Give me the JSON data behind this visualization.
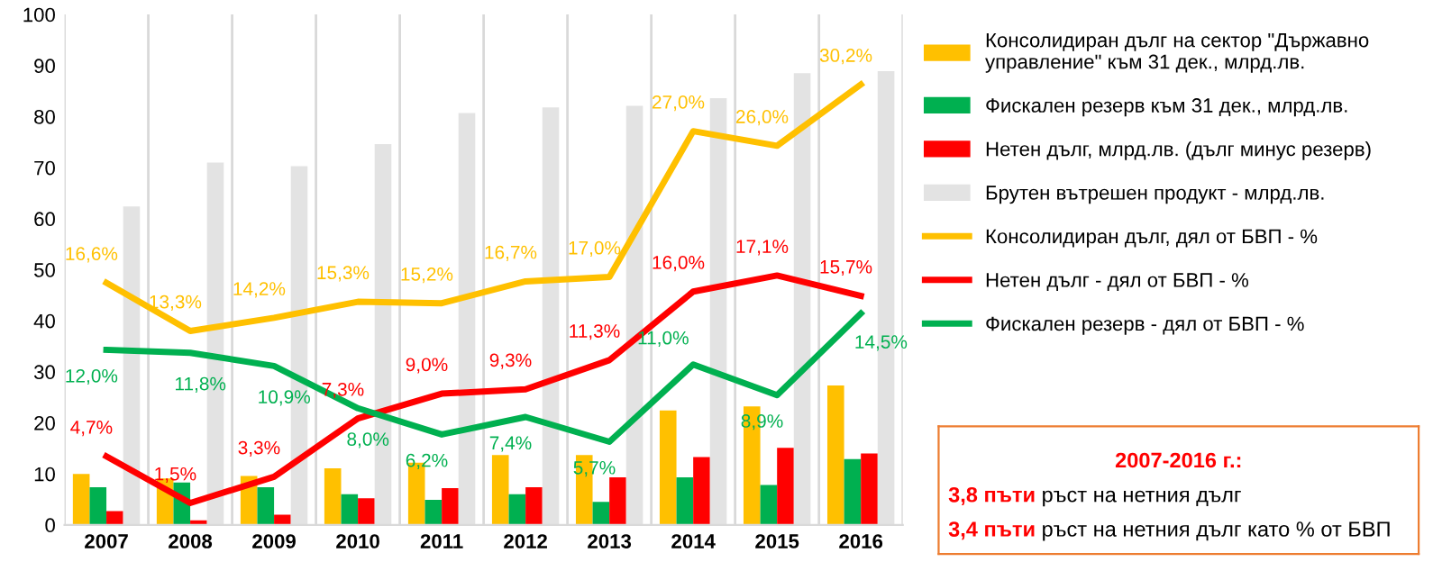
{
  "chart_data": {
    "type": "bar",
    "categories": [
      "2007",
      "2008",
      "2009",
      "2010",
      "2011",
      "2012",
      "2013",
      "2014",
      "2015",
      "2016"
    ],
    "series": [
      {
        "name": "Консолидиран дълг на сектор \"Държавно управление\" към 31 дек., млрд.лв.",
        "color": "#ffc000",
        "values": [
          10.0,
          9.1,
          9.6,
          11.1,
          12.2,
          13.7,
          13.7,
          22.4,
          23.2,
          27.3
        ]
      },
      {
        "name": "Фискален резерв към 31 дек., млрд.лв.",
        "color": "#00b050",
        "values": [
          7.4,
          8.3,
          7.4,
          6.0,
          4.9,
          6.0,
          4.5,
          9.3,
          7.8,
          12.9
        ]
      },
      {
        "name": "Нетен дълг, млрд.лв. (дълг минус резерв)",
        "color": "#ff0000",
        "values": [
          2.7,
          0.9,
          2.0,
          5.2,
          7.2,
          7.4,
          9.3,
          13.3,
          15.1,
          14.0
        ]
      },
      {
        "name": "Брутен вътрешен продукт - млрд.лв.",
        "color": "#e3e3e3",
        "values": [
          62.4,
          71.0,
          70.3,
          74.6,
          80.7,
          81.8,
          82.1,
          83.6,
          88.5,
          88.9
        ]
      },
      {
        "name": "Консолидиран дълг, дял от БВП - %",
        "color": "#ffc000",
        "type": "line",
        "axis": "y2",
        "values": [
          16.6,
          13.3,
          14.2,
          15.3,
          15.2,
          16.7,
          17.0,
          27.0,
          26.0,
          30.2
        ],
        "value_labels": [
          "16,6%",
          "13,3%",
          "14,2%",
          "15,3%",
          "15,2%",
          "16,7%",
          "17,0%",
          "27,0%",
          "26,0%",
          "30,2%"
        ]
      },
      {
        "name": "Нетен дълг - дял от БВП - %",
        "color": "#ff0000",
        "type": "line",
        "axis": "y2",
        "values": [
          4.7,
          1.5,
          3.3,
          7.3,
          9.0,
          9.3,
          11.3,
          16.0,
          17.1,
          15.7
        ],
        "value_labels": [
          "4,7%",
          "1,5%",
          "3,3%",
          "7,3%",
          "9,0%",
          "9,3%",
          "11,3%",
          "16,0%",
          "17,1%",
          "15,7%"
        ]
      },
      {
        "name": "Фискален резерв - дял от БВП - %",
        "color": "#00b050",
        "type": "line",
        "axis": "y2",
        "values": [
          12.0,
          11.8,
          10.9,
          8.0,
          6.2,
          7.4,
          5.7,
          11.0,
          8.9,
          14.5
        ],
        "value_labels": [
          "12,0%",
          "11,8%",
          "10,9%",
          "8,0%",
          "6,2%",
          "7,4%",
          "5,7%",
          "11,0%",
          "8,9%",
          "14,5%"
        ]
      }
    ],
    "ylim": [
      0,
      100
    ],
    "yticks": [
      0,
      10,
      20,
      30,
      40,
      50,
      60,
      70,
      80,
      90,
      100
    ],
    "y2lim": [
      0,
      35
    ],
    "grid": "x",
    "legend": "right",
    "annotations": [
      "2007-2016 г.:",
      "3,8 пъти",
      "ръст на нетния дълг",
      "3,4 пъти",
      "ръст на нетния дълг като % от БВП"
    ]
  }
}
